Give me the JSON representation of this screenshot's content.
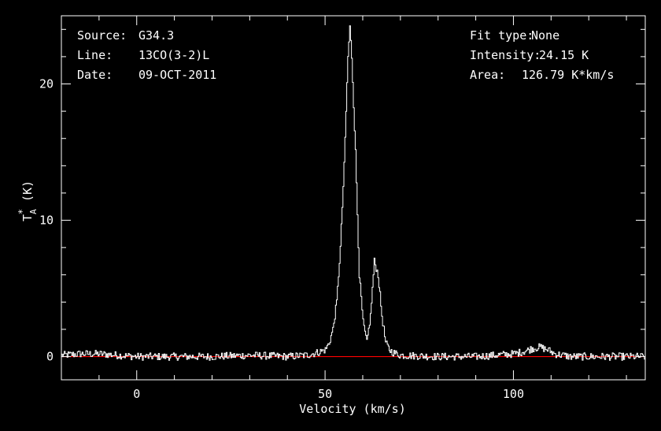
{
  "info": {
    "source_label": "Source:",
    "source_value": "G34.3",
    "line_label": "Line:",
    "line_value": "13CO(3-2)L",
    "date_label": "Date:",
    "date_value": "09-OCT-2011",
    "fit_label": "Fit type:",
    "fit_value": "None",
    "intensity_label": "Intensity:",
    "intensity_value": "24.15 K",
    "area_label": "Area:",
    "area_value": "126.79 K*km/s"
  },
  "colors": {
    "background": "#000000",
    "axes": "#ffffff",
    "spectrum": "#ffffff",
    "baseline": "#ff0000"
  },
  "chart_data": {
    "type": "line",
    "xlabel": "Velocity (km/s)",
    "ylabel": "T_A^* (K)",
    "xlim": [
      -20,
      135
    ],
    "ylim": [
      -1.7,
      25
    ],
    "xticks": [
      0,
      50,
      100
    ],
    "yticks": [
      0,
      10,
      20
    ],
    "grid": false,
    "baseline_y": 0,
    "series": [
      {
        "x": [
          -20,
          -15,
          -10,
          -5,
          0,
          10,
          20,
          30,
          40,
          45,
          48,
          50,
          51,
          52,
          53,
          54,
          55,
          55.5,
          56,
          56.5,
          57,
          58,
          59,
          60,
          61,
          62,
          63,
          64,
          65,
          66,
          67,
          68,
          70,
          80,
          90,
          100,
          103,
          105,
          107,
          109,
          111,
          115,
          120,
          125,
          130,
          135
        ],
        "y": [
          0.1,
          0.2,
          0.2,
          0.1,
          0.0,
          0.0,
          0.0,
          0.1,
          0.0,
          0.1,
          0.3,
          0.5,
          1.0,
          2.0,
          4.0,
          8.0,
          14.0,
          18.0,
          22.0,
          24.15,
          22.0,
          15.0,
          6.0,
          2.5,
          1.0,
          3.0,
          7.0,
          6.0,
          3.0,
          1.0,
          0.5,
          0.3,
          0.1,
          0.0,
          0.0,
          0.2,
          0.4,
          0.6,
          0.7,
          0.5,
          0.2,
          0.0,
          0.0,
          0.0,
          0.0,
          0.0
        ]
      }
    ]
  }
}
